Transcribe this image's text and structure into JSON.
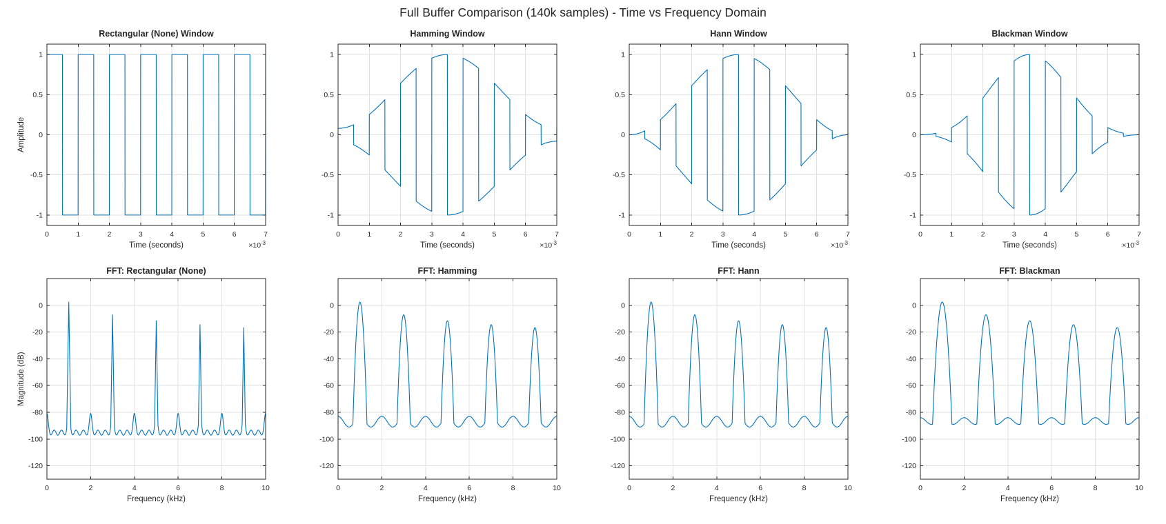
{
  "figure": {
    "title": "Full Buffer Comparison (140k samples) - Time vs Frequency Domain",
    "background_color": "#ffffff",
    "line_color": "#0072BD",
    "grid_color": "#E0E0E0",
    "axis_color": "#262626",
    "text_color": "#262626"
  },
  "chart_data": [
    {
      "id": "time-rectangular",
      "type": "line",
      "row": "time",
      "title": "Rectangular (None) Window",
      "xlabel": "Time (seconds)",
      "exp_prefix": "×10",
      "exp_power": "-3",
      "ylabel": "Amplitude",
      "xlim": [
        0,
        7
      ],
      "ylim": [
        -1.13,
        1.13
      ],
      "xticks": [
        0,
        1,
        2,
        3,
        4,
        5,
        6,
        7
      ],
      "xtick_labels": [
        "0",
        "1",
        "2",
        "3",
        "4",
        "5",
        "6",
        "7"
      ],
      "yticks": [
        1,
        0.5,
        0,
        -0.5,
        -1
      ],
      "ytick_labels": [
        "1",
        "0.5",
        "0",
        "-0.5",
        "-1"
      ],
      "grid": true,
      "series": {
        "kind": "windowed_square",
        "window": "rectangular",
        "square_freq_hz": 1000,
        "duration_ms": 7
      }
    },
    {
      "id": "time-hamming",
      "type": "line",
      "row": "time",
      "title": "Hamming Window",
      "xlabel": "Time (seconds)",
      "exp_prefix": "×10",
      "exp_power": "-3",
      "ylabel": "",
      "xlim": [
        0,
        7
      ],
      "ylim": [
        -1.13,
        1.13
      ],
      "xticks": [
        0,
        1,
        2,
        3,
        4,
        5,
        6,
        7
      ],
      "xtick_labels": [
        "0",
        "1",
        "2",
        "3",
        "4",
        "5",
        "6",
        "7"
      ],
      "yticks": [
        1,
        0.5,
        0,
        -0.5,
        -1
      ],
      "ytick_labels": [
        "1",
        "0.5",
        "0",
        "-0.5",
        "-1"
      ],
      "grid": true,
      "series": {
        "kind": "windowed_square",
        "window": "hamming",
        "square_freq_hz": 1000,
        "duration_ms": 7
      }
    },
    {
      "id": "time-hann",
      "type": "line",
      "row": "time",
      "title": "Hann Window",
      "xlabel": "Time (seconds)",
      "exp_prefix": "×10",
      "exp_power": "-3",
      "ylabel": "",
      "xlim": [
        0,
        7
      ],
      "ylim": [
        -1.13,
        1.13
      ],
      "xticks": [
        0,
        1,
        2,
        3,
        4,
        5,
        6,
        7
      ],
      "xtick_labels": [
        "0",
        "1",
        "2",
        "3",
        "4",
        "5",
        "6",
        "7"
      ],
      "yticks": [
        1,
        0.5,
        0,
        -0.5,
        -1
      ],
      "ytick_labels": [
        "1",
        "0.5",
        "0",
        "-0.5",
        "-1"
      ],
      "grid": true,
      "series": {
        "kind": "windowed_square",
        "window": "hann",
        "square_freq_hz": 1000,
        "duration_ms": 7
      }
    },
    {
      "id": "time-blackman",
      "type": "line",
      "row": "time",
      "title": "Blackman Window",
      "xlabel": "Time (seconds)",
      "exp_prefix": "×10",
      "exp_power": "-3",
      "ylabel": "",
      "xlim": [
        0,
        7
      ],
      "ylim": [
        -1.13,
        1.13
      ],
      "xticks": [
        0,
        1,
        2,
        3,
        4,
        5,
        6,
        7
      ],
      "xtick_labels": [
        "0",
        "1",
        "2",
        "3",
        "4",
        "5",
        "6",
        "7"
      ],
      "yticks": [
        1,
        0.5,
        0,
        -0.5,
        -1
      ],
      "ytick_labels": [
        "1",
        "0.5",
        "0",
        "-0.5",
        "-1"
      ],
      "grid": true,
      "series": {
        "kind": "windowed_square",
        "window": "blackman",
        "square_freq_hz": 1000,
        "duration_ms": 7
      }
    },
    {
      "id": "fft-rectangular",
      "type": "line",
      "row": "fft",
      "title": "FFT: Rectangular (None)",
      "xlabel": "Frequency (kHz)",
      "ylabel": "Magnitude (dB)",
      "xlim": [
        0,
        10
      ],
      "ylim": [
        -130,
        20
      ],
      "xticks": [
        0,
        2,
        4,
        6,
        8,
        10
      ],
      "xtick_labels": [
        "0",
        "2",
        "4",
        "6",
        "8",
        "10"
      ],
      "yticks": [
        0,
        -20,
        -40,
        -60,
        -80,
        -100,
        -120
      ],
      "ytick_labels": [
        "0",
        "-20",
        "-40",
        "-60",
        "-80",
        "-100",
        "-120"
      ],
      "grid": true,
      "series": {
        "kind": "fft_spectrum",
        "window": "rectangular",
        "peak_freqs_khz": [
          1,
          3,
          5,
          7,
          9
        ],
        "peak_dbs": [
          2.4,
          -7.1,
          -11.6,
          -14.5,
          -16.7
        ],
        "lobe_shape": "spike",
        "spike_slope_db_per_khz": 1000,
        "lobe_width_khz": 0.1,
        "floor_base_db": -95.2,
        "floor_cos_amp_db": 1.9,
        "floor_cos_cycles": 3,
        "floor_bump_db": 12.5,
        "floor_bump_width_khz": 0.085
      }
    },
    {
      "id": "fft-hamming",
      "type": "line",
      "row": "fft",
      "title": "FFT: Hamming",
      "xlabel": "Frequency (kHz)",
      "ylabel": "",
      "xlim": [
        0,
        10
      ],
      "ylim": [
        -130,
        20
      ],
      "xticks": [
        0,
        2,
        4,
        6,
        8,
        10
      ],
      "xtick_labels": [
        "0",
        "2",
        "4",
        "6",
        "8",
        "10"
      ],
      "yticks": [
        0,
        -20,
        -40,
        -60,
        -80,
        -100,
        -120
      ],
      "ytick_labels": [
        "0",
        "-20",
        "-40",
        "-60",
        "-80",
        "-100",
        "-120"
      ],
      "grid": true,
      "series": {
        "kind": "fft_spectrum",
        "window": "hamming",
        "peak_freqs_khz": [
          1,
          3,
          5,
          7,
          9
        ],
        "peak_dbs": [
          2.4,
          -7.1,
          -11.6,
          -14.5,
          -16.7
        ],
        "lobe_shape": "gaussian",
        "spike_slope_db_per_khz": 0,
        "lobe_width_khz": 0.32,
        "floor_base_db": -87,
        "floor_cos_amp_db": 4,
        "floor_cos_cycles": 1,
        "floor_bump_db": 0,
        "floor_bump_width_khz": 0.085
      }
    },
    {
      "id": "fft-hann",
      "type": "line",
      "row": "fft",
      "title": "FFT: Hann",
      "xlabel": "Frequency (kHz)",
      "ylabel": "",
      "xlim": [
        0,
        10
      ],
      "ylim": [
        -130,
        20
      ],
      "xticks": [
        0,
        2,
        4,
        6,
        8,
        10
      ],
      "xtick_labels": [
        "0",
        "2",
        "4",
        "6",
        "8",
        "10"
      ],
      "yticks": [
        0,
        -20,
        -40,
        -60,
        -80,
        -100,
        -120
      ],
      "ytick_labels": [
        "0",
        "-20",
        "-40",
        "-60",
        "-80",
        "-100",
        "-120"
      ],
      "grid": true,
      "series": {
        "kind": "fft_spectrum",
        "window": "hann",
        "peak_freqs_khz": [
          1,
          3,
          5,
          7,
          9
        ],
        "peak_dbs": [
          2.4,
          -7.1,
          -11.6,
          -14.5,
          -16.7
        ],
        "lobe_shape": "gaussian",
        "spike_slope_db_per_khz": 0,
        "lobe_width_khz": 0.32,
        "floor_base_db": -87,
        "floor_cos_amp_db": 4,
        "floor_cos_cycles": 1,
        "floor_bump_db": 0,
        "floor_bump_width_khz": 0.085
      }
    },
    {
      "id": "fft-blackman",
      "type": "line",
      "row": "fft",
      "title": "FFT: Blackman",
      "xlabel": "Frequency (kHz)",
      "ylabel": "",
      "xlim": [
        0,
        10
      ],
      "ylim": [
        -130,
        20
      ],
      "xticks": [
        0,
        2,
        4,
        6,
        8,
        10
      ],
      "xtick_labels": [
        "0",
        "2",
        "4",
        "6",
        "8",
        "10"
      ],
      "yticks": [
        0,
        -20,
        -40,
        -60,
        -80,
        -100,
        -120
      ],
      "ytick_labels": [
        "0",
        "-20",
        "-40",
        "-60",
        "-80",
        "-100",
        "-120"
      ],
      "grid": true,
      "series": {
        "kind": "fft_spectrum",
        "window": "blackman",
        "peak_freqs_khz": [
          1,
          3,
          5,
          7,
          9
        ],
        "peak_dbs": [
          2.4,
          -7.1,
          -11.6,
          -14.5,
          -16.7
        ],
        "lobe_shape": "gaussian",
        "spike_slope_db_per_khz": 0,
        "lobe_width_khz": 0.44,
        "floor_base_db": -86.5,
        "floor_cos_amp_db": 2.5,
        "floor_cos_cycles": 1,
        "floor_bump_db": 0,
        "floor_bump_width_khz": 0.085
      }
    }
  ]
}
